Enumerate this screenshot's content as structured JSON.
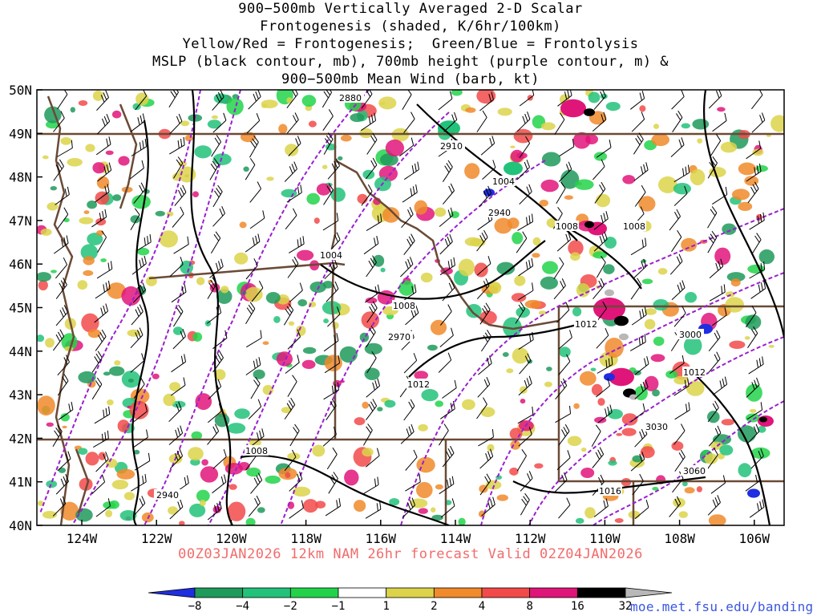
{
  "title_lines": [
    "900−500mb Vertically Averaged 2-D Scalar",
    "Frontogenesis (shaded, K/6hr/100km)",
    "Yellow/Red = Frontogenesis;  Green/Blue = Frontolysis",
    "MSLP (black contour, mb), 700mb height (purple contour, m) &",
    "900−500mb Mean Wind (barb, kt)"
  ],
  "valid_line": "00Z03JAN2026 12km NAM 26hr forecast Valid 02Z04JAN2026",
  "credit": "moe.met.fsu.edu/banding",
  "lat_labels": [
    "50N",
    "49N",
    "48N",
    "47N",
    "46N",
    "45N",
    "44N",
    "43N",
    "42N",
    "41N",
    "40N"
  ],
  "lon_labels": [
    "124W",
    "122W",
    "120W",
    "118W",
    "116W",
    "114W",
    "112W",
    "110W",
    "108W",
    "106W"
  ],
  "height_contour_labels": [
    "2880",
    "2910",
    "2940",
    "2970",
    "3000",
    "3030",
    "3060",
    "2940"
  ],
  "pressure_contour_labels": [
    "1004",
    "1004",
    "1008",
    "1008",
    "1008",
    "1012",
    "1012",
    "1016",
    "1008",
    "1012"
  ],
  "colorbar": {
    "labels": [
      "−8",
      "−4",
      "−2",
      "−1",
      "1",
      "2",
      "4",
      "8",
      "16",
      "32"
    ],
    "colors": [
      "#1f2ee0",
      "#1e9a5a",
      "#22c27a",
      "#22d34a",
      "#ffffff",
      "#dcd34a",
      "#f08a2a",
      "#f24a4a",
      "#e0157a",
      "#000000",
      "#b8b8b8"
    ]
  },
  "colors": {
    "height_contour": "#9a1fd0",
    "pressure_contour": "#000000",
    "borders": "#6b4a36",
    "valid_text": "#f26b6b",
    "credit_text": "#3b56e0"
  }
}
